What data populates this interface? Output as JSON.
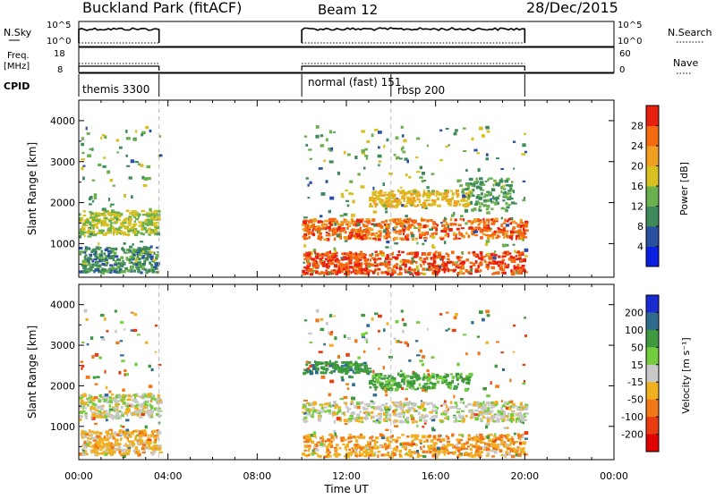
{
  "header": {
    "site": "Buckland Park (fitACF)",
    "beam": "Beam 12",
    "date": "28/Dec/2015"
  },
  "strips": {
    "nsky_label": "N.Sky",
    "nsky_ticks": [
      "10^5",
      "10^0"
    ],
    "nsearch_label": "N.Search",
    "nsearch_ticks": [
      "10^5",
      "10^0"
    ],
    "freq_label": "Freq.",
    "freq_unit": "[MHz]",
    "freq_ticks": [
      "18",
      "8"
    ],
    "nave_label": "Nave",
    "nave_ticks": [
      "60",
      "0"
    ],
    "cpid_label": "CPID",
    "cpid_modes": [
      {
        "label": "themis 3300",
        "start": 0.0,
        "end": 3.6
      },
      {
        "label": "normal (fast) 151",
        "start": 10.0,
        "end": 14.0
      },
      {
        "label": "rbsp 200",
        "start": 14.0,
        "end": 20.0
      }
    ]
  },
  "chart_data": [
    {
      "type": "heatmap",
      "panel": "power",
      "ylabel": "Slant Range [km]",
      "yticks": [
        "1000",
        "2000",
        "3000",
        "4000"
      ],
      "ylim": [
        180,
        4500
      ],
      "xlim": [
        0,
        24
      ],
      "xticks": [
        "00:00",
        "04:00",
        "08:00",
        "12:00",
        "16:00",
        "20:00",
        "00:00"
      ],
      "colorbar": {
        "label": "Power [dB]",
        "ticks": [
          "4",
          "8",
          "12",
          "16",
          "20",
          "24",
          "28"
        ],
        "range": [
          0,
          32
        ],
        "colors": [
          "#0a1fe0",
          "#2a4ea0",
          "#3f8a5a",
          "#6ab04c",
          "#d7c020",
          "#f0a020",
          "#f36a10",
          "#e82010"
        ]
      },
      "observation_intervals_UT_hours": [
        [
          0.0,
          3.6
        ],
        [
          10.0,
          20.0
        ]
      ],
      "echo_bands": [
        {
          "x0": 0.0,
          "x1": 3.6,
          "y0": 1200,
          "y1": 1800,
          "db": 16
        },
        {
          "x0": 0.0,
          "x1": 3.6,
          "y0": 300,
          "y1": 900,
          "db": 10
        },
        {
          "x0": 10.0,
          "x1": 20.0,
          "y0": 1100,
          "y1": 1600,
          "db": 26
        },
        {
          "x0": 10.0,
          "x1": 20.0,
          "y0": 250,
          "y1": 800,
          "db": 28
        },
        {
          "x0": 13.0,
          "x1": 17.5,
          "y0": 1900,
          "y1": 2300,
          "db": 20
        },
        {
          "x0": 17.0,
          "x1": 19.5,
          "y0": 1800,
          "y1": 2600,
          "db": 12
        }
      ]
    },
    {
      "type": "heatmap",
      "panel": "velocity",
      "ylabel": "Slant Range [km]",
      "yticks": [
        "1000",
        "2000",
        "3000",
        "4000"
      ],
      "ylim": [
        180,
        4500
      ],
      "xlim": [
        0,
        24
      ],
      "xlabel": "Time UT",
      "xticks": [
        "00:00",
        "04:00",
        "08:00",
        "12:00",
        "16:00",
        "20:00",
        "00:00"
      ],
      "colorbar": {
        "label": "Velocity [m s⁻¹]",
        "ticks": [
          "200",
          "100",
          "50",
          "15",
          "-15",
          "-50",
          "-100",
          "-200"
        ],
        "colors": [
          "#1a2ad0",
          "#2f6b8f",
          "#3f9a3f",
          "#72cc3c",
          "#c8c8c8",
          "#f0b020",
          "#f07818",
          "#e83c10",
          "#e00000"
        ]
      },
      "observation_intervals_UT_hours": [
        [
          0.0,
          3.6
        ],
        [
          10.0,
          20.0
        ]
      ],
      "echo_bands": [
        {
          "x0": 0.0,
          "x1": 3.6,
          "y0": 1200,
          "y1": 1800,
          "v": 0
        },
        {
          "x0": 0.0,
          "x1": 3.6,
          "y0": 300,
          "y1": 900,
          "v": -30
        },
        {
          "x0": 10.0,
          "x1": 20.0,
          "y0": 1100,
          "y1": 1600,
          "v": 0
        },
        {
          "x0": 10.0,
          "x1": 20.0,
          "y0": 250,
          "y1": 800,
          "v": -40
        },
        {
          "x0": 13.0,
          "x1": 17.5,
          "y0": 1900,
          "y1": 2300,
          "v": 60
        },
        {
          "x0": 10.0,
          "x1": 13.0,
          "y0": 2300,
          "y1": 2600,
          "v": 80
        }
      ]
    }
  ]
}
